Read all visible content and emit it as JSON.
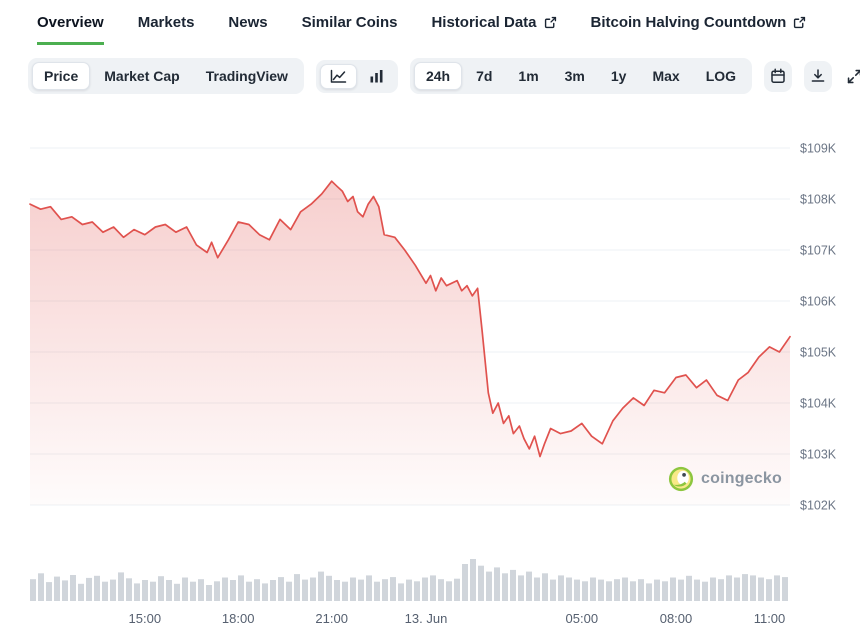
{
  "colors": {
    "accent_green": "#4caf50",
    "line_red": "#e0524e",
    "volume_gray": "#d0d5db"
  },
  "tab_bar": {
    "items": [
      {
        "label": "Overview",
        "active": true,
        "external": false
      },
      {
        "label": "Markets",
        "active": false,
        "external": false
      },
      {
        "label": "News",
        "active": false,
        "external": false
      },
      {
        "label": "Similar Coins",
        "active": false,
        "external": false
      },
      {
        "label": "Historical Data",
        "active": false,
        "external": true
      },
      {
        "label": "Bitcoin Halving Countdown",
        "active": false,
        "external": true
      }
    ]
  },
  "toolbar": {
    "metric_options": [
      "Price",
      "Market Cap",
      "TradingView"
    ],
    "metric_selected": "Price",
    "chart_types": [
      "line-chart",
      "bar-chart"
    ],
    "chart_type_selected": "line-chart",
    "ranges": [
      "24h",
      "7d",
      "1m",
      "3m",
      "1y",
      "Max",
      "LOG"
    ],
    "range_selected": "24h",
    "icon_buttons": [
      "calendar-icon",
      "download-icon",
      "fullscreen-icon"
    ]
  },
  "watermark": {
    "label": "coingecko"
  },
  "chart_data": {
    "type": "line",
    "title": "Bitcoin price, 24h",
    "unit": "USD thousands",
    "line_color": "#e0524e",
    "ylim": [
      102,
      109
    ],
    "y_tick_values": [
      109,
      108,
      107,
      106,
      105,
      104,
      103,
      102
    ],
    "y_ticks": [
      "$109K",
      "$108K",
      "$107K",
      "$106K",
      "$105K",
      "$104K",
      "$103K",
      "$102K"
    ],
    "x_ticks": [
      {
        "label": "15:00",
        "f": 0.151
      },
      {
        "label": "18:00",
        "f": 0.274
      },
      {
        "label": "21:00",
        "f": 0.397
      },
      {
        "label": "13. Jun",
        "f": 0.521
      },
      {
        "label": "05:00",
        "f": 0.726
      },
      {
        "label": "08:00",
        "f": 0.85
      },
      {
        "label": "11:00",
        "f": 0.973
      }
    ],
    "points": [
      [
        0.0,
        107.9
      ],
      [
        0.014,
        107.8
      ],
      [
        0.027,
        107.85
      ],
      [
        0.041,
        107.6
      ],
      [
        0.055,
        107.65
      ],
      [
        0.069,
        107.5
      ],
      [
        0.082,
        107.55
      ],
      [
        0.096,
        107.35
      ],
      [
        0.11,
        107.45
      ],
      [
        0.123,
        107.25
      ],
      [
        0.137,
        107.4
      ],
      [
        0.151,
        107.3
      ],
      [
        0.165,
        107.45
      ],
      [
        0.178,
        107.5
      ],
      [
        0.192,
        107.35
      ],
      [
        0.206,
        107.45
      ],
      [
        0.219,
        107.1
      ],
      [
        0.233,
        106.95
      ],
      [
        0.239,
        107.15
      ],
      [
        0.247,
        106.85
      ],
      [
        0.261,
        107.2
      ],
      [
        0.274,
        107.55
      ],
      [
        0.288,
        107.5
      ],
      [
        0.302,
        107.3
      ],
      [
        0.315,
        107.2
      ],
      [
        0.329,
        107.6
      ],
      [
        0.343,
        107.4
      ],
      [
        0.356,
        107.75
      ],
      [
        0.37,
        107.9
      ],
      [
        0.384,
        108.1
      ],
      [
        0.397,
        108.35
      ],
      [
        0.404,
        108.25
      ],
      [
        0.411,
        108.15
      ],
      [
        0.418,
        107.95
      ],
      [
        0.425,
        108.05
      ],
      [
        0.431,
        107.75
      ],
      [
        0.438,
        107.65
      ],
      [
        0.445,
        107.9
      ],
      [
        0.452,
        108.05
      ],
      [
        0.459,
        107.85
      ],
      [
        0.466,
        107.3
      ],
      [
        0.48,
        107.25
      ],
      [
        0.493,
        107.0
      ],
      [
        0.507,
        106.7
      ],
      [
        0.521,
        106.35
      ],
      [
        0.527,
        106.5
      ],
      [
        0.534,
        106.2
      ],
      [
        0.541,
        106.45
      ],
      [
        0.548,
        106.3
      ],
      [
        0.562,
        106.4
      ],
      [
        0.568,
        106.2
      ],
      [
        0.575,
        106.3
      ],
      [
        0.582,
        106.1
      ],
      [
        0.589,
        106.25
      ],
      [
        0.595,
        105.4
      ],
      [
        0.603,
        104.2
      ],
      [
        0.609,
        103.8
      ],
      [
        0.616,
        104.0
      ],
      [
        0.623,
        103.6
      ],
      [
        0.63,
        103.75
      ],
      [
        0.636,
        103.4
      ],
      [
        0.644,
        103.55
      ],
      [
        0.65,
        103.3
      ],
      [
        0.657,
        103.1
      ],
      [
        0.664,
        103.35
      ],
      [
        0.671,
        102.95
      ],
      [
        0.677,
        103.2
      ],
      [
        0.685,
        103.5
      ],
      [
        0.698,
        103.4
      ],
      [
        0.712,
        103.45
      ],
      [
        0.726,
        103.6
      ],
      [
        0.739,
        103.35
      ],
      [
        0.753,
        103.2
      ],
      [
        0.767,
        103.65
      ],
      [
        0.78,
        103.9
      ],
      [
        0.794,
        104.1
      ],
      [
        0.808,
        103.95
      ],
      [
        0.821,
        104.25
      ],
      [
        0.835,
        104.2
      ],
      [
        0.85,
        104.5
      ],
      [
        0.863,
        104.55
      ],
      [
        0.877,
        104.3
      ],
      [
        0.89,
        104.45
      ],
      [
        0.904,
        104.15
      ],
      [
        0.918,
        104.05
      ],
      [
        0.932,
        104.45
      ],
      [
        0.945,
        104.6
      ],
      [
        0.959,
        104.9
      ],
      [
        0.973,
        105.1
      ],
      [
        0.986,
        105.0
      ],
      [
        1.0,
        105.3
      ]
    ],
    "volume": {
      "color": "#d0d5db",
      "bars": [
        0.52,
        0.66,
        0.45,
        0.58,
        0.49,
        0.62,
        0.41,
        0.55,
        0.6,
        0.46,
        0.51,
        0.68,
        0.54,
        0.42,
        0.5,
        0.46,
        0.59,
        0.5,
        0.41,
        0.56,
        0.46,
        0.52,
        0.38,
        0.47,
        0.56,
        0.5,
        0.61,
        0.46,
        0.52,
        0.42,
        0.5,
        0.57,
        0.46,
        0.64,
        0.51,
        0.56,
        0.7,
        0.6,
        0.5,
        0.46,
        0.56,
        0.51,
        0.61,
        0.46,
        0.52,
        0.57,
        0.42,
        0.51,
        0.47,
        0.56,
        0.61,
        0.52,
        0.47,
        0.53,
        0.88,
        1.0,
        0.84,
        0.7,
        0.8,
        0.66,
        0.74,
        0.61,
        0.7,
        0.56,
        0.66,
        0.51,
        0.61,
        0.56,
        0.51,
        0.47,
        0.56,
        0.51,
        0.47,
        0.52,
        0.56,
        0.47,
        0.52,
        0.42,
        0.51,
        0.47,
        0.56,
        0.51,
        0.6,
        0.51,
        0.46,
        0.56,
        0.52,
        0.61,
        0.56,
        0.64,
        0.61,
        0.56,
        0.52,
        0.61,
        0.57
      ]
    }
  }
}
